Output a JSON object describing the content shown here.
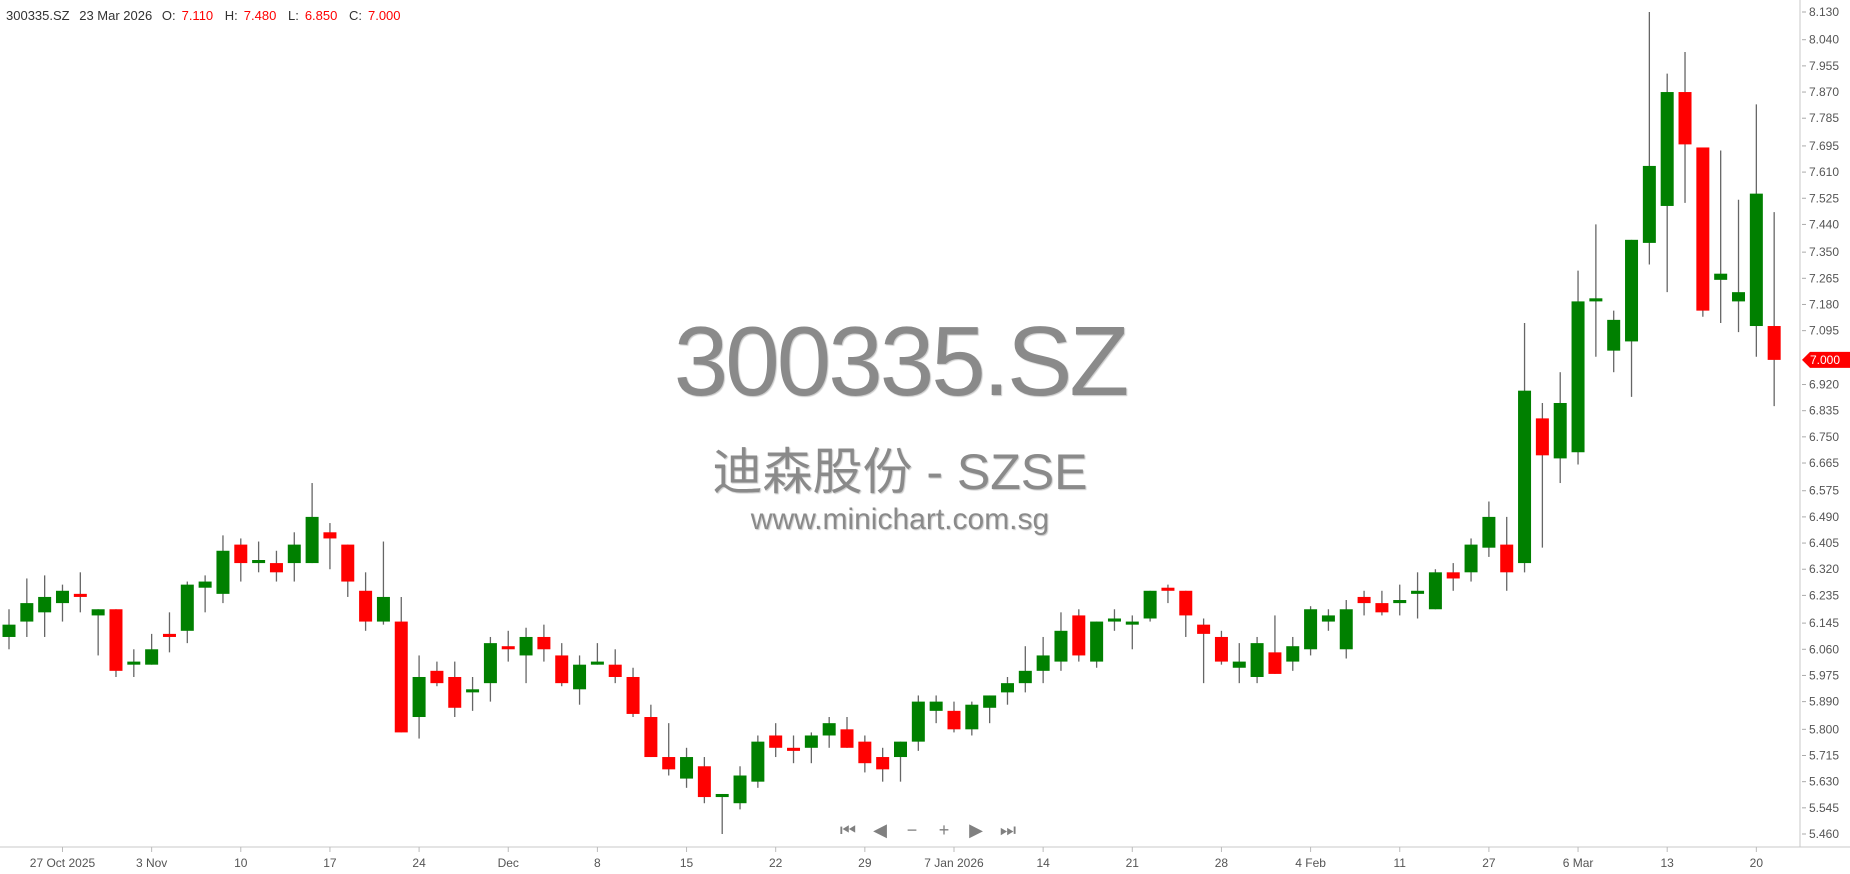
{
  "header": {
    "symbol": "300335.SZ",
    "date": "23 Mar 2026",
    "open_label": "O:",
    "open": "7.110",
    "high_label": "H:",
    "high": "7.480",
    "low_label": "L:",
    "low": "6.850",
    "close_label": "C:",
    "close": "7.000"
  },
  "watermark": {
    "symbol": "300335.SZ",
    "name": "迪森股份 - SZSE",
    "site": "www.minichart.com.sg"
  },
  "nav": [
    {
      "name": "first-icon",
      "glyph": "⏮"
    },
    {
      "name": "back-icon",
      "glyph": "◀"
    },
    {
      "name": "zoom-out-icon",
      "glyph": "−"
    },
    {
      "name": "zoom-in-icon",
      "glyph": "+"
    },
    {
      "name": "forward-icon",
      "glyph": "▶"
    },
    {
      "name": "last-icon",
      "glyph": "⏭"
    }
  ],
  "colors": {
    "up": "#008000",
    "down": "#ff0000",
    "wick": "#666666",
    "last_price": "#ff0000"
  },
  "chart_data": {
    "type": "candlestick",
    "ylim": [
      5.46,
      8.13
    ],
    "y_ticks": [
      "8.130",
      "8.040",
      "7.955",
      "7.870",
      "7.785",
      "7.695",
      "7.610",
      "7.525",
      "7.440",
      "7.350",
      "7.265",
      "7.180",
      "7.095",
      "6.920",
      "6.835",
      "6.750",
      "6.665",
      "6.575",
      "6.490",
      "6.405",
      "6.320",
      "6.235",
      "6.145",
      "6.060",
      "5.975",
      "5.890",
      "5.800",
      "5.715",
      "5.630",
      "5.545",
      "5.460"
    ],
    "last_price": "7.000",
    "x_ticks": [
      {
        "date": "2025-10-27",
        "label": "27 Oct 2025"
      },
      {
        "date": "2025-11-03",
        "label": "3 Nov"
      },
      {
        "date": "2025-11-10",
        "label": "10"
      },
      {
        "date": "2025-11-17",
        "label": "17"
      },
      {
        "date": "2025-11-24",
        "label": "24"
      },
      {
        "date": "2025-12-01",
        "label": "Dec"
      },
      {
        "date": "2025-12-08",
        "label": "8"
      },
      {
        "date": "2025-12-15",
        "label": "15"
      },
      {
        "date": "2025-12-22",
        "label": "22"
      },
      {
        "date": "2025-12-29",
        "label": "29"
      },
      {
        "date": "2026-01-07",
        "label": "7 Jan 2026"
      },
      {
        "date": "2026-01-14",
        "label": "14"
      },
      {
        "date": "2026-01-21",
        "label": "21"
      },
      {
        "date": "2026-01-28",
        "label": "28"
      },
      {
        "date": "2026-02-04",
        "label": "4 Feb"
      },
      {
        "date": "2026-02-11",
        "label": "11"
      },
      {
        "date": "2026-02-27",
        "label": "27"
      },
      {
        "date": "2026-03-06",
        "label": "6 Mar"
      },
      {
        "date": "2026-03-13",
        "label": "13"
      },
      {
        "date": "2026-03-20",
        "label": "20"
      }
    ],
    "columns": [
      "date",
      "open",
      "high",
      "low",
      "close"
    ],
    "candles": [
      [
        "2025-10-22",
        6.1,
        6.19,
        6.06,
        6.14
      ],
      [
        "2025-10-23",
        6.15,
        6.29,
        6.1,
        6.21
      ],
      [
        "2025-10-24",
        6.18,
        6.3,
        6.1,
        6.23
      ],
      [
        "2025-10-27",
        6.21,
        6.27,
        6.15,
        6.25
      ],
      [
        "2025-10-28",
        6.24,
        6.31,
        6.18,
        6.23
      ],
      [
        "2025-10-29",
        6.17,
        6.19,
        6.04,
        6.19
      ],
      [
        "2025-10-30",
        6.19,
        6.19,
        5.97,
        5.99
      ],
      [
        "2025-10-31",
        6.01,
        6.06,
        5.97,
        6.02
      ],
      [
        "2025-11-03",
        6.01,
        6.11,
        6.01,
        6.06
      ],
      [
        "2025-11-04",
        6.11,
        6.18,
        6.05,
        6.1
      ],
      [
        "2025-11-05",
        6.12,
        6.28,
        6.08,
        6.27
      ],
      [
        "2025-11-06",
        6.26,
        6.3,
        6.18,
        6.28
      ],
      [
        "2025-11-07",
        6.24,
        6.43,
        6.21,
        6.38
      ],
      [
        "2025-11-10",
        6.4,
        6.42,
        6.28,
        6.34
      ],
      [
        "2025-11-11",
        6.34,
        6.41,
        6.31,
        6.35
      ],
      [
        "2025-11-12",
        6.34,
        6.38,
        6.28,
        6.31
      ],
      [
        "2025-11-13",
        6.34,
        6.44,
        6.28,
        6.4
      ],
      [
        "2025-11-14",
        6.34,
        6.6,
        6.34,
        6.49
      ],
      [
        "2025-11-17",
        6.44,
        6.47,
        6.32,
        6.42
      ],
      [
        "2025-11-18",
        6.4,
        6.4,
        6.23,
        6.28
      ],
      [
        "2025-11-19",
        6.25,
        6.31,
        6.12,
        6.15
      ],
      [
        "2025-11-20",
        6.15,
        6.41,
        6.14,
        6.23
      ],
      [
        "2025-11-21",
        6.15,
        6.23,
        5.79,
        5.79
      ],
      [
        "2025-11-24",
        5.84,
        6.04,
        5.77,
        5.97
      ],
      [
        "2025-11-25",
        5.99,
        6.02,
        5.94,
        5.95
      ],
      [
        "2025-11-26",
        5.97,
        6.02,
        5.84,
        5.87
      ],
      [
        "2025-11-27",
        5.92,
        5.97,
        5.86,
        5.93
      ],
      [
        "2025-11-28",
        5.95,
        6.1,
        5.89,
        6.08
      ],
      [
        "2025-12-01",
        6.07,
        6.12,
        6.02,
        6.06
      ],
      [
        "2025-12-02",
        6.04,
        6.13,
        5.95,
        6.1
      ],
      [
        "2025-12-03",
        6.1,
        6.14,
        6.02,
        6.06
      ],
      [
        "2025-12-04",
        6.04,
        6.08,
        5.94,
        5.95
      ],
      [
        "2025-12-05",
        5.93,
        6.04,
        5.88,
        6.01
      ],
      [
        "2025-12-08",
        6.01,
        6.08,
        6.01,
        6.02
      ],
      [
        "2025-12-09",
        6.01,
        6.06,
        5.95,
        5.97
      ],
      [
        "2025-12-10",
        5.97,
        6.0,
        5.84,
        5.85
      ],
      [
        "2025-12-11",
        5.84,
        5.88,
        5.71,
        5.71
      ],
      [
        "2025-12-12",
        5.71,
        5.82,
        5.65,
        5.67
      ],
      [
        "2025-12-15",
        5.64,
        5.74,
        5.61,
        5.71
      ],
      [
        "2025-12-16",
        5.68,
        5.71,
        5.56,
        5.58
      ],
      [
        "2025-12-17",
        5.58,
        5.59,
        5.46,
        5.59
      ],
      [
        "2025-12-18",
        5.56,
        5.68,
        5.54,
        5.65
      ],
      [
        "2025-12-19",
        5.63,
        5.78,
        5.61,
        5.76
      ],
      [
        "2025-12-22",
        5.78,
        5.82,
        5.71,
        5.74
      ],
      [
        "2025-12-23",
        5.74,
        5.78,
        5.69,
        5.73
      ],
      [
        "2025-12-24",
        5.74,
        5.79,
        5.69,
        5.78
      ],
      [
        "2025-12-25",
        5.78,
        5.84,
        5.74,
        5.82
      ],
      [
        "2025-12-26",
        5.8,
        5.84,
        5.74,
        5.74
      ],
      [
        "2025-12-29",
        5.76,
        5.78,
        5.66,
        5.69
      ],
      [
        "2025-12-30",
        5.71,
        5.74,
        5.63,
        5.67
      ],
      [
        "2025-12-31",
        5.71,
        5.76,
        5.63,
        5.76
      ],
      [
        "2026-01-05",
        5.76,
        5.91,
        5.73,
        5.89
      ],
      [
        "2026-01-06",
        5.86,
        5.91,
        5.82,
        5.89
      ],
      [
        "2026-01-07",
        5.86,
        5.89,
        5.79,
        5.8
      ],
      [
        "2026-01-08",
        5.8,
        5.89,
        5.78,
        5.88
      ],
      [
        "2026-01-09",
        5.87,
        5.91,
        5.82,
        5.91
      ],
      [
        "2026-01-12",
        5.92,
        5.97,
        5.88,
        5.95
      ],
      [
        "2026-01-13",
        5.95,
        6.07,
        5.92,
        5.99
      ],
      [
        "2026-01-14",
        5.99,
        6.1,
        5.95,
        6.04
      ],
      [
        "2026-01-15",
        6.02,
        6.18,
        5.99,
        6.12
      ],
      [
        "2026-01-16",
        6.17,
        6.19,
        6.02,
        6.04
      ],
      [
        "2026-01-19",
        6.02,
        6.15,
        6.0,
        6.15
      ],
      [
        "2026-01-20",
        6.15,
        6.19,
        6.12,
        6.16
      ],
      [
        "2026-01-21",
        6.14,
        6.17,
        6.06,
        6.15
      ],
      [
        "2026-01-22",
        6.16,
        6.25,
        6.15,
        6.25
      ],
      [
        "2026-01-23",
        6.26,
        6.27,
        6.21,
        6.25
      ],
      [
        "2026-01-26",
        6.25,
        6.25,
        6.1,
        6.17
      ],
      [
        "2026-01-27",
        6.14,
        6.16,
        5.95,
        6.11
      ],
      [
        "2026-01-28",
        6.1,
        6.12,
        6.01,
        6.02
      ],
      [
        "2026-01-29",
        6.0,
        6.08,
        5.95,
        6.02
      ],
      [
        "2026-01-30",
        5.97,
        6.1,
        5.95,
        6.08
      ],
      [
        "2026-02-02",
        6.05,
        6.17,
        5.98,
        5.98
      ],
      [
        "2026-02-03",
        6.02,
        6.1,
        5.99,
        6.07
      ],
      [
        "2026-02-04",
        6.06,
        6.2,
        6.04,
        6.19
      ],
      [
        "2026-02-05",
        6.15,
        6.19,
        6.12,
        6.17
      ],
      [
        "2026-02-06",
        6.06,
        6.22,
        6.03,
        6.19
      ],
      [
        "2026-02-09",
        6.23,
        6.25,
        6.17,
        6.21
      ],
      [
        "2026-02-10",
        6.21,
        6.25,
        6.17,
        6.18
      ],
      [
        "2026-02-11",
        6.21,
        6.27,
        6.17,
        6.22
      ],
      [
        "2026-02-12",
        6.24,
        6.31,
        6.16,
        6.25
      ],
      [
        "2026-02-13",
        6.19,
        6.32,
        6.19,
        6.31
      ],
      [
        "2026-02-25",
        6.31,
        6.34,
        6.25,
        6.29
      ],
      [
        "2026-02-26",
        6.31,
        6.42,
        6.28,
        6.4
      ],
      [
        "2026-02-27",
        6.39,
        6.54,
        6.36,
        6.49
      ],
      [
        "2026-03-02",
        6.4,
        6.49,
        6.25,
        6.31
      ],
      [
        "2026-03-03",
        6.34,
        7.12,
        6.31,
        6.9
      ],
      [
        "2026-03-04",
        6.81,
        6.86,
        6.39,
        6.69
      ],
      [
        "2026-03-05",
        6.68,
        6.96,
        6.6,
        6.86
      ],
      [
        "2026-03-06",
        6.7,
        7.29,
        6.66,
        7.19
      ],
      [
        "2026-03-09",
        7.19,
        7.44,
        7.01,
        7.2
      ],
      [
        "2026-03-10",
        7.03,
        7.16,
        6.96,
        7.13
      ],
      [
        "2026-03-11",
        7.06,
        7.39,
        6.88,
        7.39
      ],
      [
        "2026-03-12",
        7.38,
        8.13,
        7.31,
        7.63
      ],
      [
        "2026-03-13",
        7.5,
        7.93,
        7.22,
        7.87
      ],
      [
        "2026-03-16",
        7.87,
        8.0,
        7.51,
        7.7
      ],
      [
        "2026-03-17",
        7.69,
        7.69,
        7.14,
        7.16
      ],
      [
        "2026-03-18",
        7.26,
        7.68,
        7.12,
        7.28
      ],
      [
        "2026-03-19",
        7.19,
        7.52,
        7.09,
        7.22
      ],
      [
        "2026-03-20",
        7.11,
        7.83,
        7.01,
        7.54
      ],
      [
        "2026-03-23",
        7.11,
        7.48,
        6.85,
        7.0
      ]
    ]
  }
}
